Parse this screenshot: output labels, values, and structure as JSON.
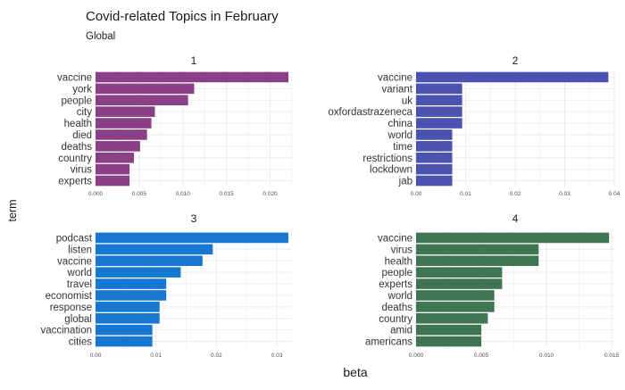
{
  "chart_data": {
    "type": "bar",
    "orientation": "horizontal",
    "title": "Covid-related Topics in February",
    "subtitle": "Global",
    "xlabel": "beta",
    "ylabel": "term",
    "grid": true,
    "panels": [
      {
        "label": "1",
        "color": "#8A3F86",
        "categories": [
          "vaccine",
          "york",
          "people",
          "city",
          "health",
          "died",
          "deaths",
          "country",
          "virus",
          "experts"
        ],
        "values": [
          0.0221,
          0.0113,
          0.0106,
          0.0068,
          0.0064,
          0.0059,
          0.0051,
          0.0044,
          0.0039,
          0.0039
        ],
        "xlim": [
          0,
          0.0225
        ],
        "xticks": [
          0,
          0.005,
          0.01,
          0.015,
          0.02
        ],
        "xtick_labels": [
          "0.000",
          "0.005",
          "0.010",
          "0.015",
          "0.020"
        ]
      },
      {
        "label": "2",
        "color": "#4B52B0",
        "categories": [
          "vaccine",
          "variant",
          "uk",
          "oxfordastrazeneca",
          "china",
          "world",
          "time",
          "restrictions",
          "lockdown",
          "jab"
        ],
        "values": [
          0.0388,
          0.0093,
          0.0093,
          0.0093,
          0.0093,
          0.0073,
          0.0073,
          0.0073,
          0.0073,
          0.0073
        ],
        "xlim": [
          0,
          0.04
        ],
        "xticks": [
          0,
          0.01,
          0.02,
          0.03,
          0.04
        ],
        "xtick_labels": [
          "0.00",
          "0.01",
          "0.02",
          "0.03",
          "0.04"
        ]
      },
      {
        "label": "3",
        "color": "#1677D1",
        "categories": [
          "podcast",
          "listen",
          "vaccine",
          "world",
          "travel",
          "economist",
          "response",
          "global",
          "vaccination",
          "cities"
        ],
        "values": [
          0.0319,
          0.0194,
          0.0177,
          0.0141,
          0.0117,
          0.0117,
          0.0106,
          0.0106,
          0.0094,
          0.0094
        ],
        "xlim": [
          0,
          0.0325
        ],
        "xticks": [
          0,
          0.01,
          0.02,
          0.03
        ],
        "xtick_labels": [
          "0.00",
          "0.01",
          "0.02",
          "0.03"
        ]
      },
      {
        "label": "4",
        "color": "#3F7552",
        "categories": [
          "vaccine",
          "virus",
          "health",
          "people",
          "experts",
          "world",
          "deaths",
          "country",
          "amid",
          "americans"
        ],
        "values": [
          0.0148,
          0.0094,
          0.0094,
          0.0066,
          0.0066,
          0.006,
          0.006,
          0.0055,
          0.005,
          0.005
        ],
        "xlim": [
          0,
          0.0152
        ],
        "xticks": [
          0,
          0.005,
          0.01,
          0.015
        ],
        "xtick_labels": [
          "0.000",
          "0.005",
          "0.010",
          "0.015"
        ]
      }
    ]
  }
}
